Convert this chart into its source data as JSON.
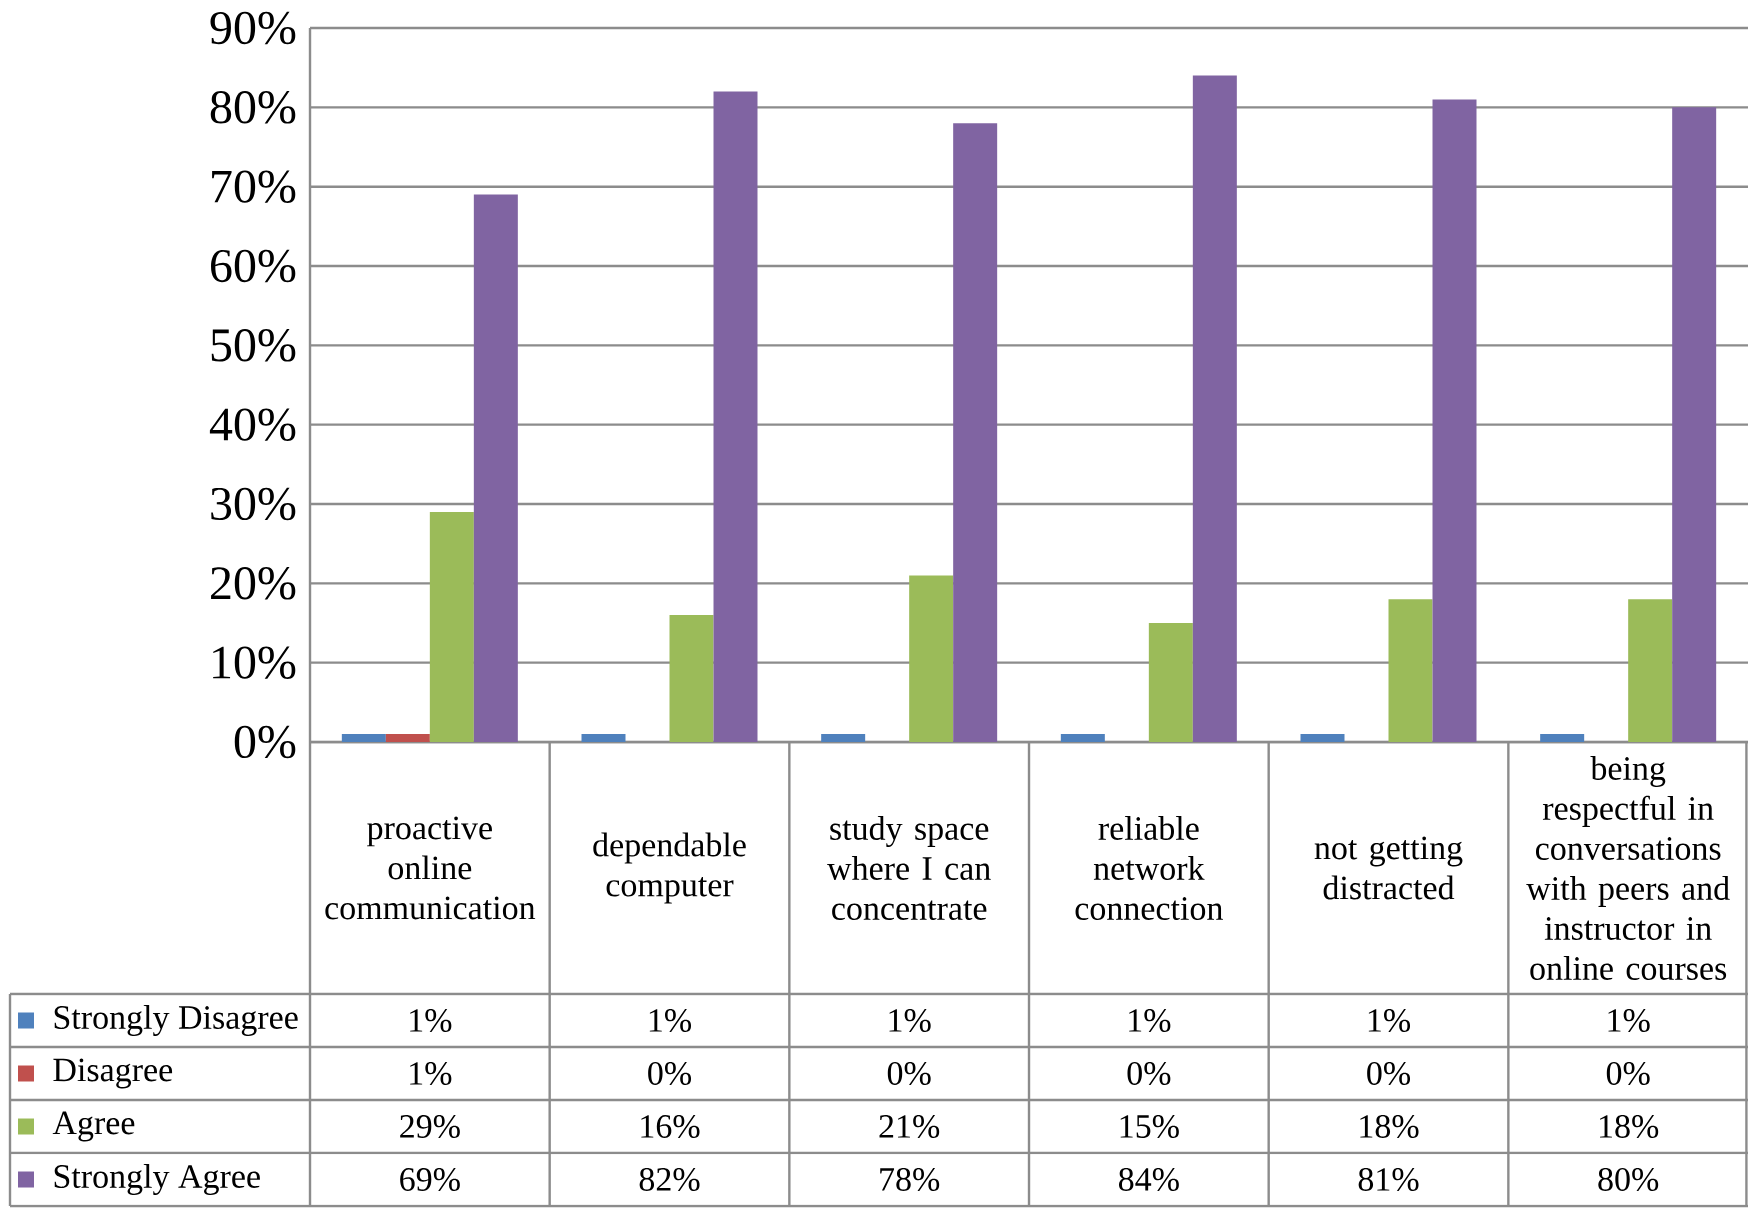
{
  "chart_data": {
    "type": "bar",
    "categories": [
      "proactive online communication",
      "dependable computer",
      "study space where I can concentrate",
      "reliable network connection",
      "not getting distracted",
      "being respectful in conversations with peers and instructor in online courses"
    ],
    "series": [
      {
        "name": "Strongly Disagree",
        "color": "#4f81bd",
        "values": [
          1,
          1,
          1,
          1,
          1,
          1
        ],
        "value_labels": [
          "1%",
          "1%",
          "1%",
          "1%",
          "1%",
          "1%"
        ]
      },
      {
        "name": "Disagree",
        "color": "#c0504d",
        "values": [
          1,
          0,
          0,
          0,
          0,
          0
        ],
        "value_labels": [
          "1%",
          "0%",
          "0%",
          "0%",
          "0%",
          "0%"
        ]
      },
      {
        "name": "Agree",
        "color": "#9bbb59",
        "values": [
          29,
          16,
          21,
          15,
          18,
          18
        ],
        "value_labels": [
          "29%",
          "16%",
          "21%",
          "15%",
          "18%",
          "18%"
        ]
      },
      {
        "name": "Strongly Agree",
        "color": "#8064a2",
        "values": [
          69,
          82,
          78,
          84,
          81,
          80
        ],
        "value_labels": [
          "69%",
          "82%",
          "78%",
          "84%",
          "81%",
          "80%"
        ]
      }
    ],
    "ylim": [
      0,
      90
    ],
    "yticks": [
      {
        "value": 0,
        "label": "0%"
      },
      {
        "value": 10,
        "label": "10%"
      },
      {
        "value": 20,
        "label": "20%"
      },
      {
        "value": 30,
        "label": "30%"
      },
      {
        "value": 40,
        "label": "40%"
      },
      {
        "value": 50,
        "label": "50%"
      },
      {
        "value": 60,
        "label": "60%"
      },
      {
        "value": 70,
        "label": "70%"
      },
      {
        "value": 80,
        "label": "80%"
      },
      {
        "value": 90,
        "label": "90%"
      }
    ],
    "grid": "y",
    "legend": "bottom"
  }
}
